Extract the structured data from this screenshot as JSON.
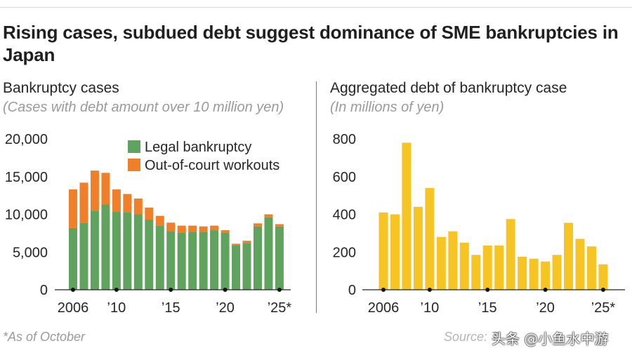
{
  "title": "Rising cases, subdued debt suggest dominance of SME bankruptcies in Japan",
  "footnote": "*As of October",
  "source": "Source: T",
  "watermark": "头条 @小鱼水中游",
  "chart_data": [
    {
      "type": "bar",
      "stacked": true,
      "title": "Bankruptcy cases",
      "subtitle": "(Cases with debt amount over 10 million yen)",
      "x": [
        2006,
        2007,
        2008,
        2009,
        2010,
        2011,
        2012,
        2013,
        2014,
        2015,
        2016,
        2017,
        2018,
        2019,
        2020,
        2021,
        2022,
        2023,
        2024,
        2025
      ],
      "x_tick_labels": [
        {
          "x": 2006,
          "label": "2006"
        },
        {
          "x": 2010,
          "label": "’10"
        },
        {
          "x": 2015,
          "label": "’15"
        },
        {
          "x": 2020,
          "label": "’20"
        },
        {
          "x": 2025,
          "label": "’25*"
        }
      ],
      "series": [
        {
          "name": "Legal bankruptcy",
          "color": "#5fa35f",
          "values": [
            8200,
            8900,
            10500,
            11300,
            10400,
            10300,
            10000,
            9300,
            8500,
            7800,
            7600,
            7700,
            7700,
            7900,
            7600,
            5900,
            6200,
            8400,
            9600,
            8400
          ]
        },
        {
          "name": "Out-of-court workouts",
          "color": "#f07f2a",
          "values": [
            5100,
            5300,
            5300,
            4200,
            2900,
            2400,
            2100,
            1600,
            1300,
            1100,
            900,
            800,
            700,
            600,
            300,
            200,
            300,
            400,
            400,
            300
          ]
        }
      ],
      "y_ticks": [
        "0",
        "5,000",
        "10,000",
        "15,000",
        "20,000"
      ],
      "ylim": [
        0,
        20000
      ],
      "legend_position": "top-right"
    },
    {
      "type": "bar",
      "title": "Aggregated debt of bankruptcy case",
      "subtitle": "(In millions of yen)",
      "x": [
        2006,
        2007,
        2008,
        2009,
        2010,
        2011,
        2012,
        2013,
        2014,
        2015,
        2016,
        2017,
        2018,
        2019,
        2020,
        2021,
        2022,
        2023,
        2024,
        2025
      ],
      "x_tick_labels": [
        {
          "x": 2006,
          "label": "2006"
        },
        {
          "x": 2010,
          "label": "’10"
        },
        {
          "x": 2015,
          "label": "’15"
        },
        {
          "x": 2020,
          "label": "’20"
        },
        {
          "x": 2025,
          "label": "’25*"
        }
      ],
      "series": [
        {
          "color": "#f7c523",
          "values": [
            410,
            400,
            780,
            440,
            540,
            280,
            310,
            250,
            185,
            235,
            235,
            375,
            175,
            165,
            150,
            185,
            355,
            270,
            230,
            135
          ]
        }
      ],
      "y_ticks": [
        "0",
        "200",
        "400",
        "600",
        "800"
      ],
      "ylim": [
        0,
        800
      ]
    }
  ]
}
